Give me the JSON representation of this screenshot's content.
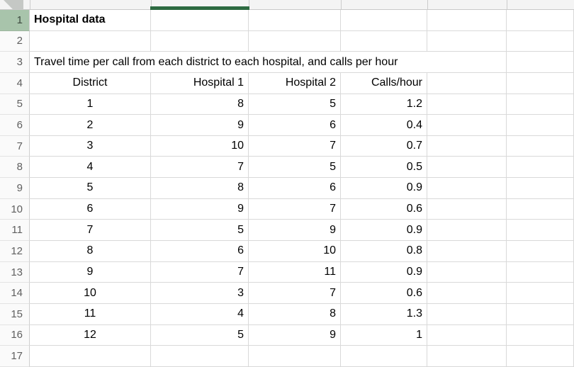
{
  "title": "Hospital data",
  "description": "Travel time per call from each district to each hospital, and calls per hour",
  "row_numbers": [
    "1",
    "2",
    "3",
    "4",
    "5",
    "6",
    "7",
    "8",
    "9",
    "10",
    "11",
    "12",
    "13",
    "14",
    "15",
    "16",
    "17"
  ],
  "table": {
    "headers": [
      "District",
      "Hospital 1",
      "Hospital 2",
      "Calls/hour"
    ],
    "rows": [
      [
        "1",
        "8",
        "5",
        "1.2"
      ],
      [
        "2",
        "9",
        "6",
        "0.4"
      ],
      [
        "3",
        "10",
        "7",
        "0.7"
      ],
      [
        "4",
        "7",
        "5",
        "0.5"
      ],
      [
        "5",
        "8",
        "6",
        "0.9"
      ],
      [
        "6",
        "9",
        "7",
        "0.6"
      ],
      [
        "7",
        "5",
        "9",
        "0.9"
      ],
      [
        "8",
        "6",
        "10",
        "0.8"
      ],
      [
        "9",
        "7",
        "11",
        "0.9"
      ],
      [
        "10",
        "3",
        "7",
        "0.6"
      ],
      [
        "11",
        "4",
        "8",
        "1.3"
      ],
      [
        "12",
        "5",
        "9",
        "1"
      ]
    ]
  },
  "colors": {
    "active_column_underline": "#2d6a41",
    "selected_row_header_bg": "#a8c4ab",
    "gridline": "#d9d9d9",
    "header_strip_bg": "#f4f4f4",
    "row_number_text": "#5f5f5f"
  }
}
